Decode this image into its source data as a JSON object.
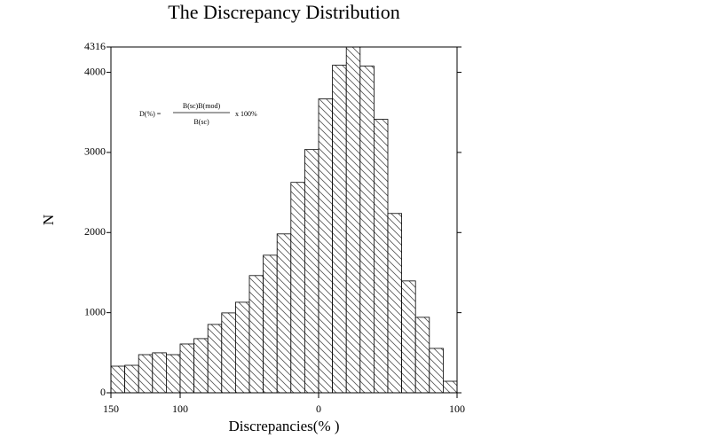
{
  "chart_data": {
    "type": "histogram",
    "title": "The Discrepancy Distribution",
    "xlabel": "Discrepancies(% )",
    "ylabel": "N",
    "annotation": {
      "lhs": "D(%) =",
      "numerator": "B(sc)B(mod)",
      "denominator": "B(sc)",
      "rhs": "x 100%"
    },
    "bins": [
      -150,
      -140,
      -130,
      -120,
      -110,
      -100,
      -90,
      -80,
      -70,
      -60,
      -50,
      -40,
      -30,
      -20,
      -10,
      0,
      10,
      20,
      30,
      40,
      50,
      60,
      70,
      80,
      90,
      100
    ],
    "values": [
      332,
      343,
      476,
      499,
      476,
      609,
      676,
      853,
      997,
      1130,
      1463,
      1717,
      1983,
      2626,
      3036,
      3668,
      4089,
      4316,
      4078,
      3413,
      2238,
      1396,
      942,
      554,
      144
    ],
    "color": "#ffffff",
    "edgecolor": "#000000",
    "hatchcolor": "#555555",
    "xlim": [
      -150,
      100
    ],
    "xticks": [
      {
        "value": -150,
        "label": "150"
      },
      {
        "value": -100,
        "label": "100"
      },
      0,
      100
    ],
    "ylim": [
      0,
      4316
    ],
    "yticks": [
      0,
      1000,
      2000,
      3000,
      4000,
      4316
    ]
  }
}
